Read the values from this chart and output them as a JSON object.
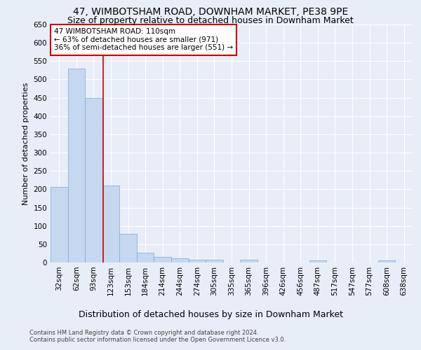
{
  "title": "47, WIMBOTSHAM ROAD, DOWNHAM MARKET, PE38 9PE",
  "subtitle": "Size of property relative to detached houses in Downham Market",
  "xlabel_bottom": "Distribution of detached houses by size in Downham Market",
  "ylabel": "Number of detached properties",
  "categories": [
    "32sqm",
    "62sqm",
    "93sqm",
    "123sqm",
    "153sqm",
    "184sqm",
    "214sqm",
    "244sqm",
    "274sqm",
    "305sqm",
    "335sqm",
    "365sqm",
    "396sqm",
    "426sqm",
    "456sqm",
    "487sqm",
    "517sqm",
    "547sqm",
    "577sqm",
    "608sqm",
    "638sqm"
  ],
  "values": [
    207,
    530,
    450,
    210,
    78,
    27,
    15,
    12,
    8,
    8,
    0,
    8,
    0,
    0,
    0,
    6,
    0,
    0,
    0,
    6,
    0
  ],
  "bar_color": "#c5d8f0",
  "bar_edge_color": "#7aaad4",
  "background_color": "#e8eef8",
  "grid_color": "#ffffff",
  "annotation_box_text": "47 WIMBOTSHAM ROAD: 110sqm\n← 63% of detached houses are smaller (971)\n36% of semi-detached houses are larger (551) →",
  "annotation_box_color": "#ffffff",
  "annotation_box_edge_color": "#cc0000",
  "annotation_line_color": "#cc0000",
  "ylim": [
    0,
    650
  ],
  "yticks": [
    0,
    50,
    100,
    150,
    200,
    250,
    300,
    350,
    400,
    450,
    500,
    550,
    600,
    650
  ],
  "footnote": "Contains HM Land Registry data © Crown copyright and database right 2024.\nContains public sector information licensed under the Open Government Licence v3.0.",
  "title_fontsize": 10,
  "subtitle_fontsize": 9,
  "ylabel_fontsize": 8,
  "tick_fontsize": 7.5,
  "annotation_fontsize": 7.5,
  "footnote_fontsize": 6,
  "xlabel_bottom_fontsize": 9
}
